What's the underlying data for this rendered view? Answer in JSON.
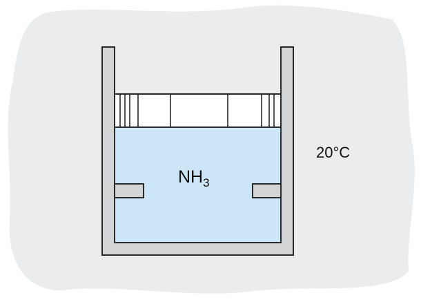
{
  "labels": {
    "gas_formula": "NH",
    "gas_subscript": "3",
    "temperature": "20°C"
  },
  "colors": {
    "background_blob": "#eaecee",
    "cylinder_wall": "#d3d4d6",
    "gas": "#cde6f7",
    "piston": "#ffffff",
    "outline": "#2a2a2a"
  }
}
